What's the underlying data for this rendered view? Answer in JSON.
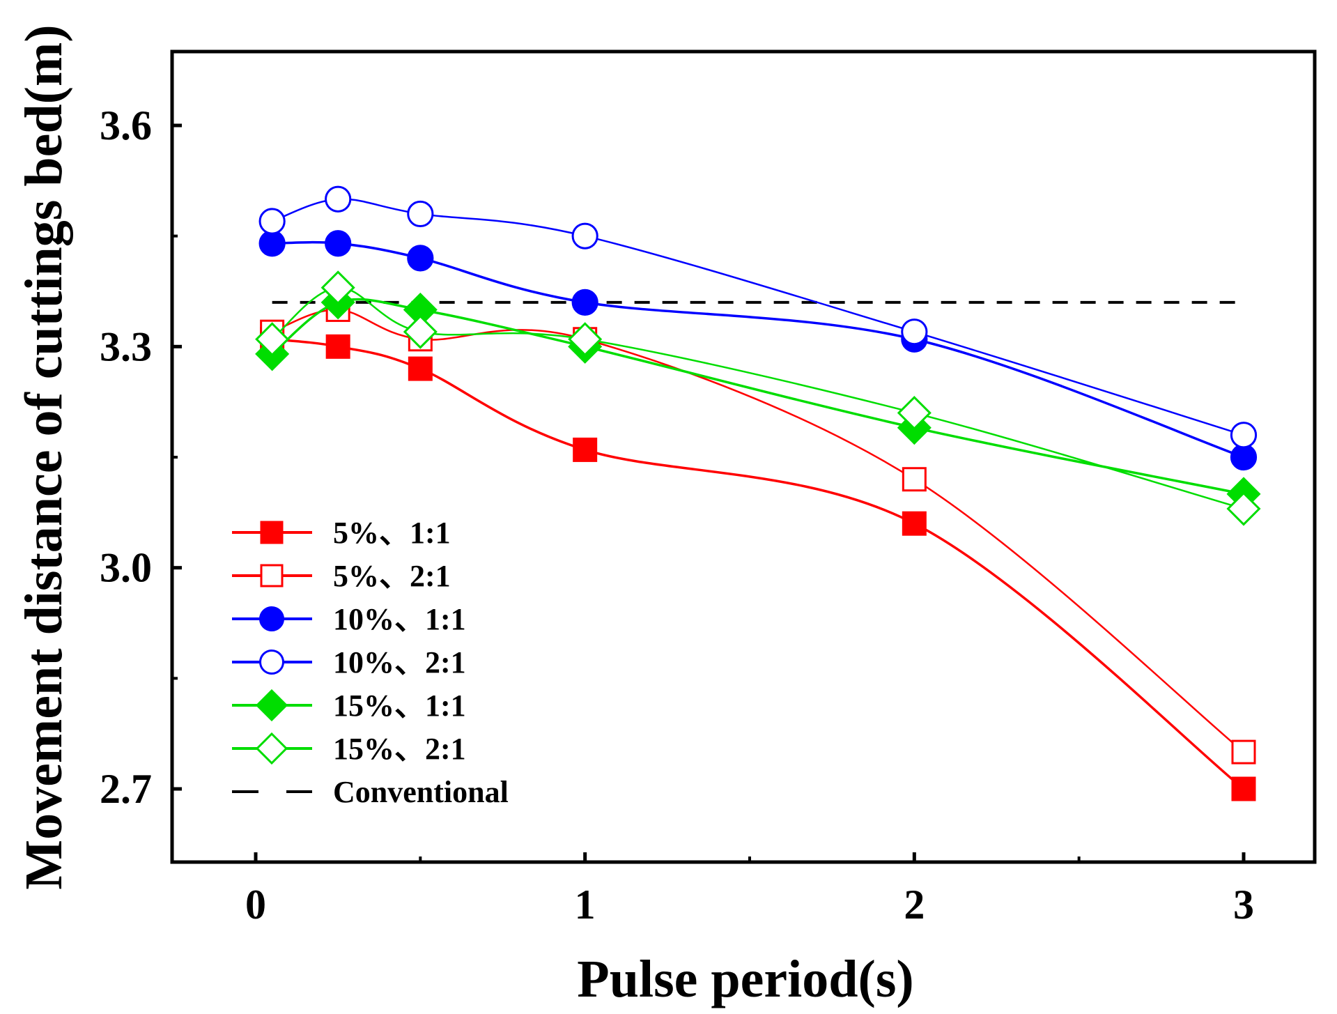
{
  "chart_data": {
    "type": "line",
    "title": "",
    "xlabel": "Pulse period(s)",
    "ylabel": "Movement distance of cuttings bed(m)",
    "xlim": [
      -0.25,
      3.25
    ],
    "ylim": [
      2.6,
      3.7
    ],
    "xticks": [
      0,
      1,
      2,
      3
    ],
    "xtick_labels": [
      "0",
      "1",
      "2",
      "3"
    ],
    "yticks": [
      2.7,
      3.0,
      3.3,
      3.6
    ],
    "ytick_labels": [
      "2.7",
      "3.0",
      "3.3",
      "3.6"
    ],
    "grid": false,
    "legend_position": "lower-left",
    "x": [
      0.05,
      0.25,
      0.5,
      1,
      2,
      3
    ],
    "series": [
      {
        "name": "5%、1:1",
        "values": [
          3.31,
          3.3,
          3.27,
          3.16,
          3.06,
          2.7
        ],
        "color": "#ff0000",
        "marker": "square",
        "filled": true
      },
      {
        "name": "5%、2:1",
        "values": [
          3.32,
          3.35,
          3.31,
          3.31,
          3.12,
          2.75
        ],
        "color": "#ff0000",
        "marker": "square",
        "filled": false
      },
      {
        "name": "10%、1:1",
        "values": [
          3.44,
          3.44,
          3.42,
          3.36,
          3.31,
          3.15
        ],
        "color": "#0000ff",
        "marker": "circle",
        "filled": true
      },
      {
        "name": "10%、2:1",
        "values": [
          3.47,
          3.5,
          3.48,
          3.45,
          3.32,
          3.18
        ],
        "color": "#0000ff",
        "marker": "circle",
        "filled": false
      },
      {
        "name": "15%、1:1",
        "values": [
          3.29,
          3.36,
          3.35,
          3.3,
          3.19,
          3.1
        ],
        "color": "#00dd00",
        "marker": "diamond",
        "filled": true
      },
      {
        "name": "15%、2:1",
        "values": [
          3.31,
          3.38,
          3.32,
          3.31,
          3.21,
          3.08
        ],
        "color": "#00dd00",
        "marker": "diamond",
        "filled": false
      }
    ],
    "reference_line": {
      "name": "Conventional",
      "y": 3.36,
      "x_range": [
        0.05,
        3
      ],
      "color": "#000000",
      "style": "dashed"
    }
  }
}
